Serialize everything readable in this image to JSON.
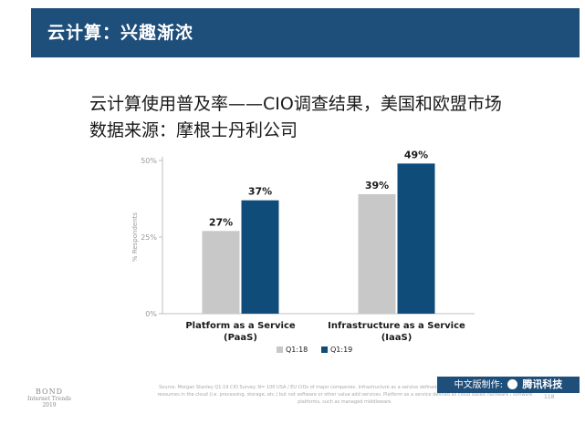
{
  "header": {
    "title": "云计算：兴趣渐浓"
  },
  "subtitle": {
    "line1": "云计算使用普及率——CIO调查结果，美国和欧盟市场",
    "line2": "数据来源：摩根士丹利公司"
  },
  "chart_data": {
    "type": "bar",
    "categories": [
      "Platform as a Service\n(PaaS)",
      "Infrastructure as a Service\n(IaaS)"
    ],
    "series": [
      {
        "name": "Q1:18",
        "color": "#c8c8c8",
        "values": [
          27,
          39
        ],
        "labels": [
          "27%",
          "39%"
        ]
      },
      {
        "name": "Q1:19",
        "color": "#0f4c7a",
        "values": [
          37,
          49
        ],
        "labels": [
          "37%",
          "49%"
        ]
      }
    ],
    "ylabel": "% Respondents",
    "ylim": [
      0,
      50
    ],
    "yticks": [
      0,
      25,
      50
    ],
    "ytick_labels": [
      "0%",
      "25%",
      "50%"
    ],
    "grid": false,
    "legend": "bottom-center"
  },
  "footer": {
    "bond": "BOND",
    "bond_sub1": "Internet Trends",
    "bond_sub2": "2019",
    "source": "Source: Morgan Stanley Q1:19 CIO Survey. N= 100 USA / EU CIOs of major companies. Infrastructure as a service defined as cloud computing that uses virtualized resources in the cloud (i.e. processing, storage, etc.) but not software or other value add services. Platform as a service defined as cloud based hardware / software platforms, such as managed middleware.",
    "credit_prefix": "中文版制作:",
    "credit_brand": "腾讯科技",
    "page": "118"
  }
}
